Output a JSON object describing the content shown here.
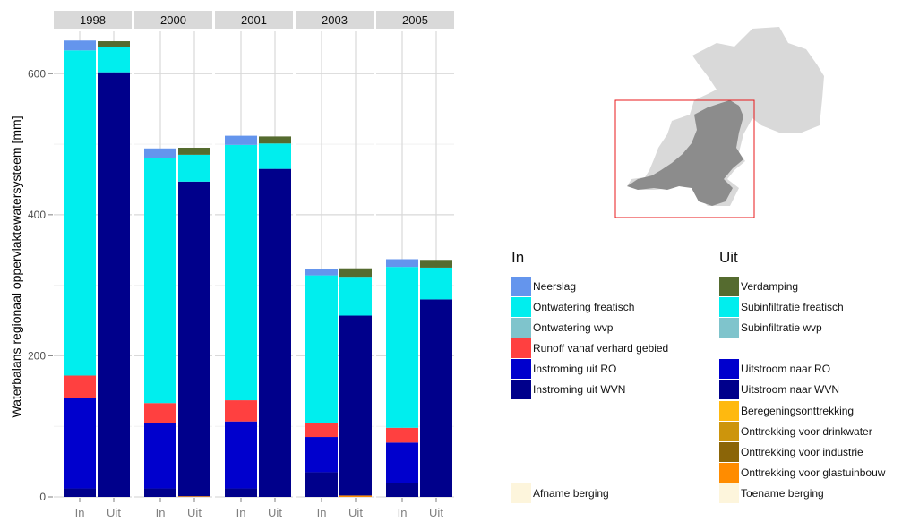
{
  "chart_data": {
    "type": "bar",
    "stacked": true,
    "facets": [
      "1998",
      "2000",
      "2001",
      "2003",
      "2005"
    ],
    "categories": [
      "In",
      "Uit"
    ],
    "ylabel": "Waterbalans regionaal oppervlaktewatersysteem [mm]",
    "xlabel": "",
    "ylim": [
      0,
      660
    ],
    "yticks": [
      0,
      200,
      400,
      600
    ],
    "grid": true,
    "legend_placement": "right",
    "in_series": [
      {
        "name": "Instroming uit WVN",
        "color": "#00008b",
        "values": [
          12,
          12,
          12,
          35,
          20
        ]
      },
      {
        "name": "Instroming uit RO",
        "color": "#0000cd",
        "values": [
          128,
          93,
          95,
          50,
          57
        ]
      },
      {
        "name": "Runoff vanaf verhard gebied",
        "color": "#ff4040",
        "values": [
          32,
          28,
          30,
          20,
          21
        ]
      },
      {
        "name": "Ontwatering wvp",
        "color": "#7fc4cc",
        "values": [
          0,
          0,
          0,
          0,
          0
        ]
      },
      {
        "name": "Ontwatering freatisch",
        "color": "#00eeee",
        "values": [
          461,
          348,
          362,
          209,
          228
        ]
      },
      {
        "name": "Neerslag",
        "color": "#6495ed",
        "values": [
          14,
          13,
          13,
          9,
          11
        ]
      },
      {
        "name": "Afname berging",
        "color": "#fdf5dc",
        "values": [
          0,
          0,
          0,
          0,
          0
        ]
      }
    ],
    "uit_series": [
      {
        "name": "Toename berging",
        "color": "#fdf5dc",
        "values": [
          0,
          0,
          0,
          0,
          0
        ]
      },
      {
        "name": "Onttrekking voor glastuinbouw",
        "color": "#ff8c00",
        "values": [
          0,
          1,
          0,
          2,
          0
        ]
      },
      {
        "name": "Onttrekking voor industrie",
        "color": "#8b6508",
        "values": [
          0,
          0,
          0,
          0,
          0
        ]
      },
      {
        "name": "Onttrekking voor drinkwater",
        "color": "#cd950c",
        "values": [
          0,
          0,
          0,
          0,
          0
        ]
      },
      {
        "name": "Beregeningsonttrekking",
        "color": "#ffb90f",
        "values": [
          0,
          0,
          0,
          0,
          0
        ]
      },
      {
        "name": "Uitstroom naar WVN",
        "color": "#00008b",
        "values": [
          602,
          446,
          465,
          255,
          280
        ]
      },
      {
        "name": "Uitstroom naar RO",
        "color": "#0000cd",
        "values": [
          0,
          0,
          0,
          0,
          0
        ]
      },
      {
        "name": "Subinfiltratie wvp",
        "color": "#7fc4cc",
        "values": [
          0,
          0,
          0,
          0,
          0
        ]
      },
      {
        "name": "Subinfiltratie freatisch",
        "color": "#00eeee",
        "values": [
          36,
          38,
          36,
          55,
          45
        ]
      },
      {
        "name": "Verdamping",
        "color": "#556b2f",
        "values": [
          8,
          10,
          10,
          12,
          11
        ]
      }
    ]
  },
  "legend": {
    "in_title": "In",
    "uit_title": "Uit",
    "in_items": [
      {
        "label": "Neerslag",
        "color": "#6495ed"
      },
      {
        "label": "Ontwatering freatisch",
        "color": "#00eeee"
      },
      {
        "label": "Ontwatering wvp",
        "color": "#7fc4cc"
      },
      {
        "label": "Runoff vanaf verhard gebied",
        "color": "#ff4040"
      },
      {
        "label": "Instroming uit RO",
        "color": "#0000cd"
      },
      {
        "label": "Instroming uit WVN",
        "color": "#00008b"
      }
    ],
    "in_bottom": {
      "label": "Afname berging",
      "color": "#fdf5dc"
    },
    "uit_items": [
      {
        "label": "Verdamping",
        "color": "#556b2f"
      },
      {
        "label": "Subinfiltratie freatisch",
        "color": "#00eeee"
      },
      {
        "label": "Subinfiltratie wvp",
        "color": "#7fc4cc"
      },
      {
        "label": "",
        "color": ""
      },
      {
        "label": "Uitstroom naar RO",
        "color": "#0000cd"
      },
      {
        "label": "Uitstroom naar WVN",
        "color": "#00008b"
      },
      {
        "label": "Beregeningsonttrekking",
        "color": "#ffb90f"
      },
      {
        "label": "Onttrekking voor drinkwater",
        "color": "#cd950c"
      },
      {
        "label": "Onttrekking voor industrie",
        "color": "#8b6508"
      },
      {
        "label": "Onttrekking voor glastuinbouw",
        "color": "#ff8c00"
      },
      {
        "label": "Toename berging",
        "color": "#fdf5dc"
      }
    ]
  },
  "map": {
    "region_color": "#d9d9d9",
    "highlight_color": "#8c8c8c",
    "frame_color": "#e8191b"
  }
}
